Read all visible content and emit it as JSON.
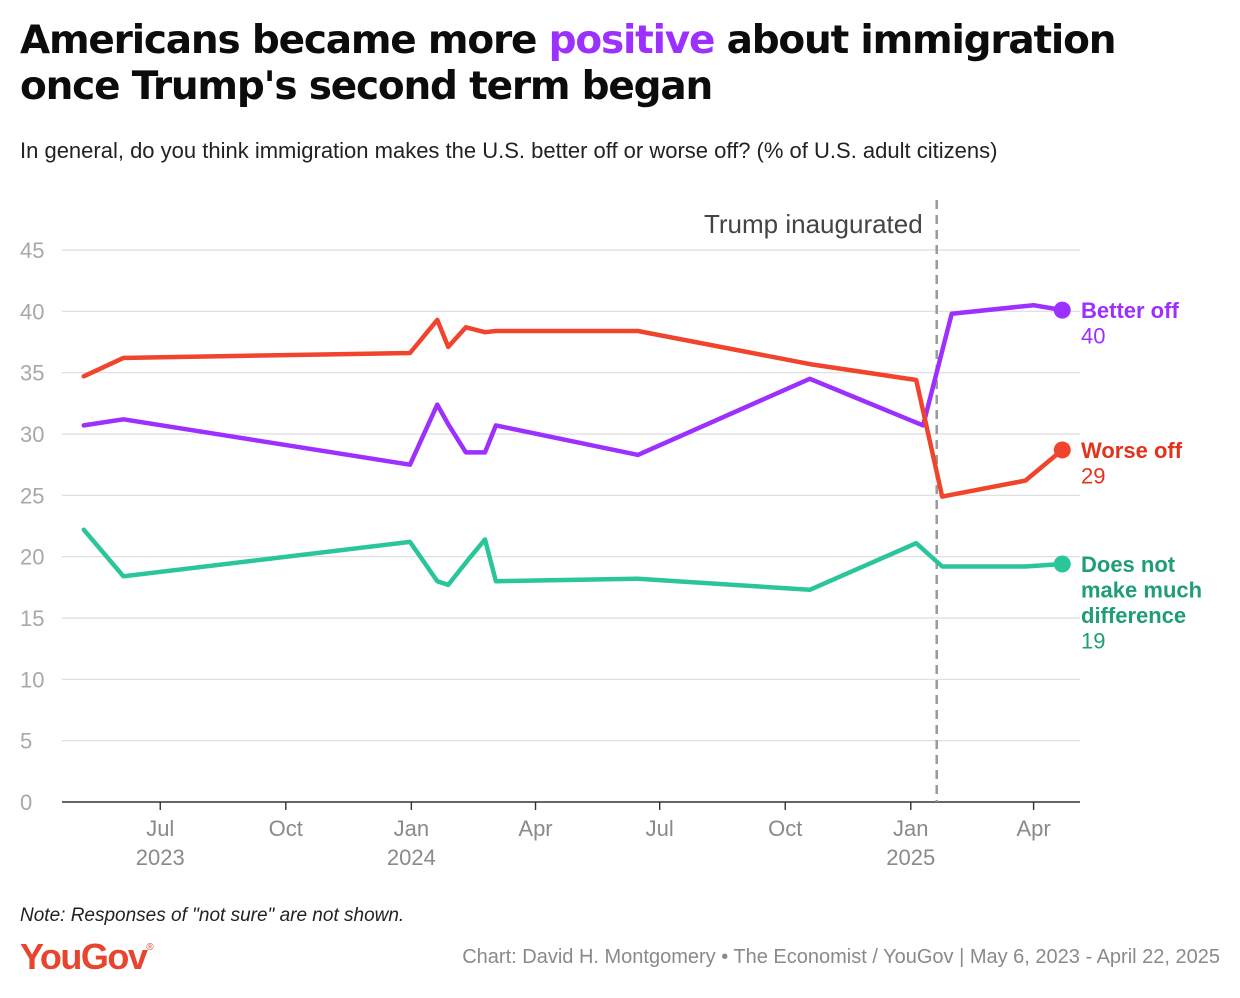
{
  "title": {
    "part1": "Americans became more ",
    "highlight": "positive",
    "part2": " about immigration once Trump's second term began",
    "highlight_color": "#9b30ff"
  },
  "subtitle": "In general, do you think immigration makes the U.S. better off or worse off? (% of U.S. adult citizens)",
  "note": "Note: Responses of \"not sure\" are not shown.",
  "logo": {
    "text": "YouGov",
    "mark": "®",
    "color": "#e8452f"
  },
  "credit": "Chart: David H. Montgomery • The Economist / YouGov | May 6, 2023 - April 22, 2025",
  "chart_data": {
    "type": "line",
    "x_range": [
      "2023-04-20",
      "2025-05-05"
    ],
    "ylim": [
      0,
      45
    ],
    "y_ticks": [
      0,
      5,
      10,
      15,
      20,
      25,
      30,
      35,
      40,
      45
    ],
    "x_ticks": [
      {
        "date": "2023-07-01",
        "label": "Jul",
        "year": "2023"
      },
      {
        "date": "2023-10-01",
        "label": "Oct",
        "year": ""
      },
      {
        "date": "2024-01-01",
        "label": "Jan",
        "year": "2024"
      },
      {
        "date": "2024-04-01",
        "label": "Apr",
        "year": ""
      },
      {
        "date": "2024-07-01",
        "label": "Jul",
        "year": ""
      },
      {
        "date": "2024-10-01",
        "label": "Oct",
        "year": ""
      },
      {
        "date": "2025-01-01",
        "label": "Jan",
        "year": "2025"
      },
      {
        "date": "2025-04-01",
        "label": "Apr",
        "year": ""
      }
    ],
    "grid": true,
    "annotation": {
      "date": "2025-01-20",
      "label": "Trump inaugurated"
    },
    "series": [
      {
        "name": "Better off",
        "color": "#9b30ff",
        "label_color": "#9b30ff",
        "final_label": "40",
        "points": [
          [
            "2023-05-06",
            30.7
          ],
          [
            "2023-06-04",
            31.2
          ],
          [
            "2023-12-31",
            27.5
          ],
          [
            "2024-01-20",
            32.4
          ],
          [
            "2024-01-28",
            30.8
          ],
          [
            "2024-02-10",
            28.5
          ],
          [
            "2024-02-24",
            28.5
          ],
          [
            "2024-03-03",
            30.7
          ],
          [
            "2024-06-15",
            28.3
          ],
          [
            "2024-10-19",
            34.5
          ],
          [
            "2025-01-10",
            30.7
          ],
          [
            "2025-01-31",
            39.8
          ],
          [
            "2025-04-01",
            40.5
          ],
          [
            "2025-04-22",
            40.1
          ]
        ]
      },
      {
        "name": "Worse off",
        "color": "#f0442c",
        "label_color": "#e3331b",
        "final_label": "29",
        "points": [
          [
            "2023-05-06",
            34.7
          ],
          [
            "2023-06-04",
            36.2
          ],
          [
            "2023-12-31",
            36.6
          ],
          [
            "2024-01-20",
            39.3
          ],
          [
            "2024-01-28",
            37.1
          ],
          [
            "2024-02-10",
            38.7
          ],
          [
            "2024-02-24",
            38.3
          ],
          [
            "2024-03-03",
            38.4
          ],
          [
            "2024-06-15",
            38.4
          ],
          [
            "2024-10-19",
            35.7
          ],
          [
            "2025-01-05",
            34.4
          ],
          [
            "2025-01-24",
            24.9
          ],
          [
            "2025-03-26",
            26.2
          ],
          [
            "2025-04-22",
            28.7
          ]
        ]
      },
      {
        "name": "Does not make much difference",
        "label_lines": [
          "Does not",
          "make much",
          "difference"
        ],
        "color": "#2bc59c",
        "label_color": "#1f9c78",
        "final_label": "19",
        "points": [
          [
            "2023-05-06",
            22.2
          ],
          [
            "2023-06-04",
            18.4
          ],
          [
            "2023-12-31",
            21.2
          ],
          [
            "2024-01-20",
            18.0
          ],
          [
            "2024-01-28",
            17.7
          ],
          [
            "2024-02-12",
            19.8
          ],
          [
            "2024-02-24",
            21.4
          ],
          [
            "2024-03-03",
            18.0
          ],
          [
            "2024-06-15",
            18.2
          ],
          [
            "2024-10-19",
            17.3
          ],
          [
            "2025-01-05",
            21.1
          ],
          [
            "2025-01-24",
            19.2
          ],
          [
            "2025-03-26",
            19.2
          ],
          [
            "2025-04-22",
            19.4
          ]
        ]
      }
    ]
  }
}
